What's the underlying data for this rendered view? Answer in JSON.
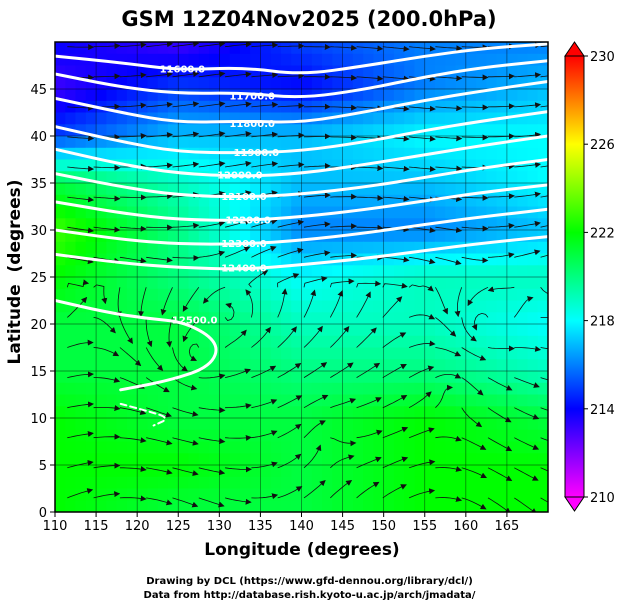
{
  "chart_data": {
    "type": "heatmap",
    "title": "GSM 12Z04Nov2025 (200.0hPa)",
    "xlabel": "Longitude (degrees)",
    "ylabel": "Latitude  (degrees)",
    "xlim": [
      110,
      170
    ],
    "ylim": [
      0,
      50
    ],
    "x_ticks": [
      110,
      115,
      120,
      125,
      130,
      135,
      140,
      145,
      150,
      155,
      160,
      165
    ],
    "y_ticks": [
      0,
      5,
      10,
      15,
      20,
      25,
      30,
      35,
      40,
      45
    ],
    "colorbar": {
      "min": 210,
      "max": 230,
      "ticks": [
        210,
        214,
        218,
        222,
        226,
        230
      ],
      "colors": [
        "#ff00ff",
        "#8000ff",
        "#0000ff",
        "#0080ff",
        "#00ffff",
        "#00ff80",
        "#00ff00",
        "#80ff00",
        "#ffff00",
        "#ff8000",
        "#ff0000"
      ]
    },
    "temperature_field": {
      "lon": [
        110,
        125,
        140,
        155,
        170
      ],
      "lat": [
        50,
        45,
        40,
        35,
        30,
        25,
        20,
        15,
        10,
        5,
        0
      ],
      "values": [
        [
          214,
          213,
          215,
          216,
          216
        ],
        [
          213,
          215,
          214,
          216,
          217
        ],
        [
          215,
          217,
          217,
          218,
          218
        ],
        [
          221,
          219,
          217,
          217,
          218
        ],
        [
          223,
          220,
          216,
          216,
          217
        ],
        [
          222,
          220,
          218,
          219,
          219
        ],
        [
          221,
          221,
          219,
          219,
          218
        ],
        [
          221,
          221,
          220,
          220,
          219
        ],
        [
          222,
          221,
          221,
          222,
          221
        ],
        [
          222,
          222,
          221,
          222,
          222
        ],
        [
          222,
          221,
          221,
          222,
          222
        ]
      ]
    },
    "height_contours": [
      {
        "label": "11600.0",
        "lon": [
          110,
          118,
          125,
          133,
          140,
          148,
          155,
          162,
          170
        ],
        "lat": [
          48.5,
          47.8,
          47.0,
          47.3,
          46.5,
          47.5,
          48.5,
          49.3,
          49.8
        ]
      },
      {
        "label": "11700.0",
        "lon": [
          110,
          118,
          125,
          133,
          140,
          148,
          155,
          162,
          170
        ],
        "lat": [
          46.6,
          45.2,
          44.5,
          44.6,
          44.0,
          45.0,
          46.3,
          47.3,
          48.0
        ]
      },
      {
        "label": "11800.0",
        "lon": [
          110,
          118,
          125,
          133,
          140,
          148,
          155,
          162,
          170
        ],
        "lat": [
          44.0,
          42.5,
          41.4,
          41.6,
          41.4,
          42.6,
          43.8,
          44.8,
          45.8
        ]
      },
      {
        "label": "11900.0",
        "lon": [
          110,
          118,
          125,
          133,
          140,
          148,
          155,
          162,
          170
        ],
        "lat": [
          41.0,
          39.4,
          38.3,
          38.2,
          38.4,
          39.4,
          40.6,
          41.6,
          42.6
        ]
      },
      {
        "label": "12000.0",
        "lon": [
          110,
          118,
          125,
          133,
          140,
          148,
          155,
          162,
          170
        ],
        "lat": [
          38.6,
          37.0,
          36.0,
          35.7,
          36.0,
          37.0,
          38.0,
          39.0,
          40.0
        ]
      },
      {
        "label": "12100.0",
        "lon": [
          110,
          118,
          125,
          133,
          140,
          148,
          155,
          162,
          170
        ],
        "lat": [
          36.0,
          34.6,
          33.7,
          33.5,
          33.8,
          34.6,
          35.6,
          36.6,
          37.5
        ]
      },
      {
        "label": "12200.0",
        "lon": [
          110,
          118,
          125,
          133,
          140,
          148,
          155,
          162,
          170
        ],
        "lat": [
          33.0,
          31.8,
          31.1,
          31.0,
          31.4,
          32.2,
          33.1,
          34.0,
          34.8
        ]
      },
      {
        "label": "12300.0",
        "lon": [
          110,
          118,
          125,
          133,
          140,
          148,
          155,
          162,
          170
        ],
        "lat": [
          30.0,
          29.0,
          28.5,
          28.5,
          28.9,
          29.7,
          30.6,
          31.4,
          32.2
        ]
      },
      {
        "label": "12400.0",
        "lon": [
          110,
          118,
          125,
          133,
          140,
          148,
          155,
          162,
          170
        ],
        "lat": [
          27.4,
          26.5,
          26.0,
          25.8,
          26.3,
          27.0,
          27.8,
          28.6,
          29.3
        ]
      },
      {
        "label": "12500.0",
        "lon": [
          110,
          116,
          121,
          126,
          130,
          129,
          124,
          118
        ],
        "lat": [
          22.5,
          21.3,
          20.6,
          20.2,
          18.0,
          15.5,
          14.0,
          13.0
        ]
      },
      {
        "label": "",
        "lon": [
          118,
          121,
          124,
          122
        ],
        "lat": [
          11.5,
          10.8,
          10.0,
          9.2
        ]
      }
    ],
    "contour_labels": [
      {
        "text": "11600.0",
        "lon": 125.5,
        "lat": 47.2
      },
      {
        "text": "11700.0",
        "lon": 134.0,
        "lat": 44.3
      },
      {
        "text": "11800.0",
        "lon": 134.0,
        "lat": 41.4
      },
      {
        "text": "11900.0",
        "lon": 134.5,
        "lat": 38.3
      },
      {
        "text": "12000.0",
        "lon": 132.5,
        "lat": 35.9
      },
      {
        "text": "12100.0",
        "lon": 133.0,
        "lat": 33.6
      },
      {
        "text": "12200.0",
        "lon": 133.5,
        "lat": 31.1
      },
      {
        "text": "12300.0",
        "lon": 133.0,
        "lat": 28.6
      },
      {
        "text": "12400.0",
        "lon": 133.0,
        "lat": 26.0
      },
      {
        "text": "12500.0",
        "lon": 127.0,
        "lat": 20.5
      }
    ],
    "grid": true
  },
  "footer": {
    "line1": "Drawing by DCL (https://www.gfd-dennou.org/library/dcl/)",
    "line2": "Data from http://database.rish.kyoto-u.ac.jp/arch/jmadata/"
  }
}
